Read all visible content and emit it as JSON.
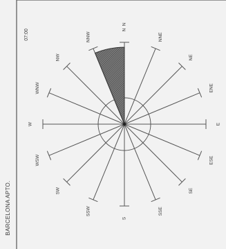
{
  "chart_data": {
    "type": "wind-rose",
    "station": "BARCELONA APTO.",
    "period": "07:00",
    "north_label": "N",
    "directions": [
      "N",
      "NNE",
      "NE",
      "ENE",
      "E",
      "ESE",
      "SE",
      "SSE",
      "S",
      "SSW",
      "SW",
      "WSW",
      "W",
      "WNW",
      "NW",
      "NNW"
    ],
    "direction_labels": [
      "N",
      "NNE",
      "NE",
      "ENE",
      "E",
      "ESE",
      "SE",
      "SSE",
      "S",
      "SSW",
      "SW",
      "WSW",
      "W",
      "WNW",
      "NW",
      "NNW"
    ],
    "values": [
      25,
      0,
      0,
      0,
      0,
      0,
      0,
      0,
      0,
      0,
      0,
      0,
      0,
      0,
      0,
      0
    ],
    "dominant_sector": {
      "from": "NNW",
      "to": "N",
      "value": 25
    },
    "axis_max": 25,
    "inner_circle_value": 8.5
  },
  "colors": {
    "frame": "#555555",
    "spoke": "#555555",
    "sector_fill": "#777777",
    "sector_hatch": "#333333",
    "text": "#3a3a3a"
  }
}
